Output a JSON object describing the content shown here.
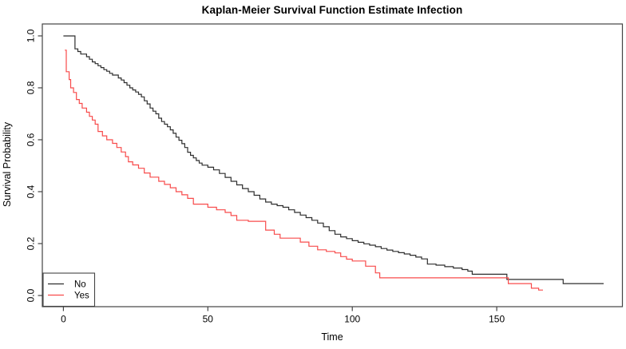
{
  "figure": {
    "title": "Kaplan-Meier Survival Function Estimate Infection",
    "xlabel": "Time",
    "ylabel": "Survival Probability"
  },
  "colors": {
    "curve_no": "#2e2e2e",
    "curve_yes": "#f84b4b",
    "axis": "#444444",
    "text": "#000000",
    "background": "#ffffff"
  },
  "legend": {
    "position": "bottom-left",
    "entries": [
      {
        "label": "No",
        "color": "#2e2e2e"
      },
      {
        "label": "Yes",
        "color": "#f84b4b"
      }
    ]
  },
  "chart_data": {
    "type": "line",
    "subtype": "kaplan-meier-step",
    "title": "Kaplan-Meier Survival Function Estimate Infection",
    "xlabel": "Time",
    "ylabel": "Survival Probability",
    "xlim": [
      -7.3,
      193.5
    ],
    "ylim": [
      -0.043,
      1.046
    ],
    "x_ticks": [
      0,
      50,
      100,
      150
    ],
    "x_tick_labels": [
      "0",
      "50",
      "100",
      "150"
    ],
    "y_ticks": [
      0.0,
      0.2,
      0.4,
      0.6,
      0.8,
      1.0
    ],
    "y_tick_labels": [
      "0.0",
      "0.2",
      "0.4",
      "0.6",
      "0.8",
      "1.0"
    ],
    "grid": false,
    "legend_position": "bottom-left",
    "series": [
      {
        "name": "No",
        "color": "#2e2e2e",
        "points": [
          [
            0,
            1.0
          ],
          [
            4,
            0.95
          ],
          [
            5,
            0.94
          ],
          [
            6,
            0.93
          ],
          [
            8,
            0.92
          ],
          [
            9,
            0.91
          ],
          [
            10,
            0.9
          ],
          [
            11,
            0.893
          ],
          [
            12,
            0.885
          ],
          [
            13,
            0.878
          ],
          [
            14,
            0.87
          ],
          [
            15,
            0.864
          ],
          [
            16,
            0.856
          ],
          [
            17,
            0.849
          ],
          [
            19,
            0.838
          ],
          [
            20,
            0.83
          ],
          [
            21,
            0.82
          ],
          [
            22,
            0.81
          ],
          [
            23,
            0.8
          ],
          [
            24,
            0.792
          ],
          [
            25,
            0.784
          ],
          [
            26,
            0.775
          ],
          [
            27,
            0.765
          ],
          [
            28,
            0.75
          ],
          [
            29,
            0.738
          ],
          [
            30,
            0.722
          ],
          [
            31,
            0.71
          ],
          [
            32,
            0.7
          ],
          [
            33,
            0.683
          ],
          [
            34,
            0.67
          ],
          [
            35,
            0.66
          ],
          [
            36,
            0.65
          ],
          [
            37,
            0.638
          ],
          [
            38,
            0.625
          ],
          [
            39,
            0.61
          ],
          [
            40,
            0.598
          ],
          [
            41,
            0.585
          ],
          [
            42,
            0.57
          ],
          [
            43,
            0.552
          ],
          [
            44,
            0.54
          ],
          [
            45,
            0.53
          ],
          [
            46,
            0.52
          ],
          [
            47,
            0.51
          ],
          [
            48,
            0.502
          ],
          [
            50,
            0.494
          ],
          [
            52,
            0.484
          ],
          [
            54,
            0.47
          ],
          [
            56,
            0.455
          ],
          [
            58,
            0.44
          ],
          [
            60,
            0.426
          ],
          [
            62,
            0.412
          ],
          [
            64,
            0.4
          ],
          [
            66,
            0.386
          ],
          [
            68,
            0.372
          ],
          [
            70,
            0.36
          ],
          [
            72,
            0.352
          ],
          [
            74,
            0.346
          ],
          [
            76,
            0.34
          ],
          [
            78,
            0.33
          ],
          [
            80,
            0.32
          ],
          [
            82,
            0.31
          ],
          [
            84,
            0.3
          ],
          [
            86,
            0.29
          ],
          [
            88,
            0.279
          ],
          [
            90,
            0.265
          ],
          [
            92,
            0.25
          ],
          [
            94,
            0.236
          ],
          [
            96,
            0.226
          ],
          [
            98,
            0.219
          ],
          [
            100,
            0.211
          ],
          [
            102,
            0.205
          ],
          [
            104,
            0.199
          ],
          [
            106,
            0.194
          ],
          [
            108,
            0.188
          ],
          [
            110,
            0.181
          ],
          [
            112,
            0.175
          ],
          [
            114,
            0.17
          ],
          [
            116,
            0.165
          ],
          [
            118,
            0.16
          ],
          [
            120,
            0.155
          ],
          [
            122,
            0.148
          ],
          [
            124,
            0.141
          ],
          [
            126,
            0.121
          ],
          [
            129,
            0.117
          ],
          [
            132,
            0.111
          ],
          [
            135,
            0.106
          ],
          [
            138,
            0.1
          ],
          [
            140,
            0.094
          ],
          [
            141.5,
            0.082
          ],
          [
            153.5,
            0.062
          ],
          [
            173,
            0.046
          ],
          [
            187,
            0.046
          ]
        ]
      },
      {
        "name": "Yes",
        "color": "#f84b4b",
        "points": [
          [
            0.5,
            0.945
          ],
          [
            1,
            0.862
          ],
          [
            2,
            0.832
          ],
          [
            2.5,
            0.8
          ],
          [
            3.5,
            0.782
          ],
          [
            4.5,
            0.755
          ],
          [
            5.5,
            0.74
          ],
          [
            6.5,
            0.722
          ],
          [
            8,
            0.706
          ],
          [
            9,
            0.69
          ],
          [
            10,
            0.676
          ],
          [
            11,
            0.66
          ],
          [
            12,
            0.632
          ],
          [
            13.5,
            0.615
          ],
          [
            15,
            0.6
          ],
          [
            17,
            0.586
          ],
          [
            18.5,
            0.57
          ],
          [
            20,
            0.553
          ],
          [
            21.5,
            0.535
          ],
          [
            22.5,
            0.515
          ],
          [
            24,
            0.503
          ],
          [
            26,
            0.49
          ],
          [
            28,
            0.472
          ],
          [
            30,
            0.456
          ],
          [
            33,
            0.44
          ],
          [
            35,
            0.428
          ],
          [
            37,
            0.415
          ],
          [
            39,
            0.4
          ],
          [
            41,
            0.388
          ],
          [
            43,
            0.374
          ],
          [
            45,
            0.352
          ],
          [
            50,
            0.34
          ],
          [
            53,
            0.33
          ],
          [
            56,
            0.32
          ],
          [
            58,
            0.308
          ],
          [
            60,
            0.29
          ],
          [
            64,
            0.286
          ],
          [
            70,
            0.252
          ],
          [
            73,
            0.236
          ],
          [
            75,
            0.221
          ],
          [
            82,
            0.206
          ],
          [
            85,
            0.19
          ],
          [
            88,
            0.176
          ],
          [
            91,
            0.17
          ],
          [
            94,
            0.164
          ],
          [
            96,
            0.15
          ],
          [
            98,
            0.14
          ],
          [
            100,
            0.133
          ],
          [
            104.6,
            0.113
          ],
          [
            108,
            0.087
          ],
          [
            109.5,
            0.068
          ],
          [
            154,
            0.046
          ],
          [
            162,
            0.028
          ],
          [
            164.5,
            0.021
          ],
          [
            166,
            0.021
          ]
        ]
      }
    ]
  }
}
